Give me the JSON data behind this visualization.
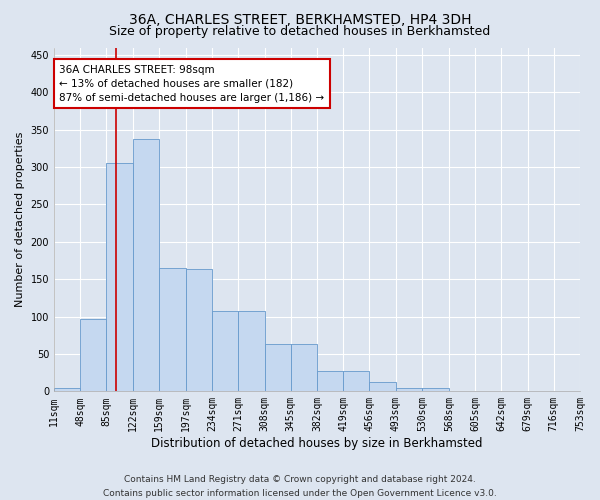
{
  "title": "36A, CHARLES STREET, BERKHAMSTED, HP4 3DH",
  "subtitle": "Size of property relative to detached houses in Berkhamsted",
  "xlabel": "Distribution of detached houses by size in Berkhamsted",
  "ylabel": "Number of detached properties",
  "footer_line1": "Contains HM Land Registry data © Crown copyright and database right 2024.",
  "footer_line2": "Contains public sector information licensed under the Open Government Licence v3.0.",
  "bar_edges": [
    11,
    48,
    85,
    122,
    159,
    197,
    234,
    271,
    308,
    345,
    382,
    419,
    456,
    493,
    530,
    568,
    605,
    642,
    679,
    716,
    753
  ],
  "bar_heights": [
    5,
    97,
    305,
    338,
    165,
    163,
    107,
    107,
    63,
    63,
    27,
    27,
    13,
    5,
    5,
    0,
    1,
    0,
    0,
    1
  ],
  "bar_color": "#c5d8f0",
  "bar_edge_color": "#6699cc",
  "property_line_x": 98,
  "property_line_color": "#cc0000",
  "annotation_line1": "36A CHARLES STREET: 98sqm",
  "annotation_line2": "← 13% of detached houses are smaller (182)",
  "annotation_line3": "87% of semi-detached houses are larger (1,186) →",
  "annotation_box_facecolor": "#ffffff",
  "annotation_box_edgecolor": "#cc0000",
  "ylim": [
    0,
    460
  ],
  "yticks": [
    0,
    50,
    100,
    150,
    200,
    250,
    300,
    350,
    400,
    450
  ],
  "background_color": "#dde5f0",
  "plot_bg_color": "#dde5f0",
  "grid_color": "#ffffff",
  "title_fontsize": 10,
  "subtitle_fontsize": 9,
  "tick_label_fontsize": 7,
  "ylabel_fontsize": 8,
  "xlabel_fontsize": 8.5,
  "footer_fontsize": 6.5
}
